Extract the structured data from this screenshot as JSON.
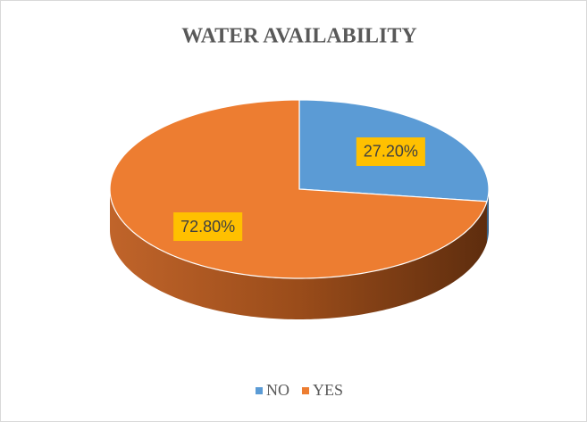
{
  "chart_data": {
    "type": "pie",
    "title": "WATER AVAILABILITY",
    "categories": [
      "NO",
      "YES"
    ],
    "values": [
      27.2,
      72.8
    ],
    "value_labels": [
      "27.20%",
      "72.80%"
    ],
    "colors": [
      "#5b9bd5",
      "#ed7d31"
    ],
    "legend": "bottom"
  }
}
